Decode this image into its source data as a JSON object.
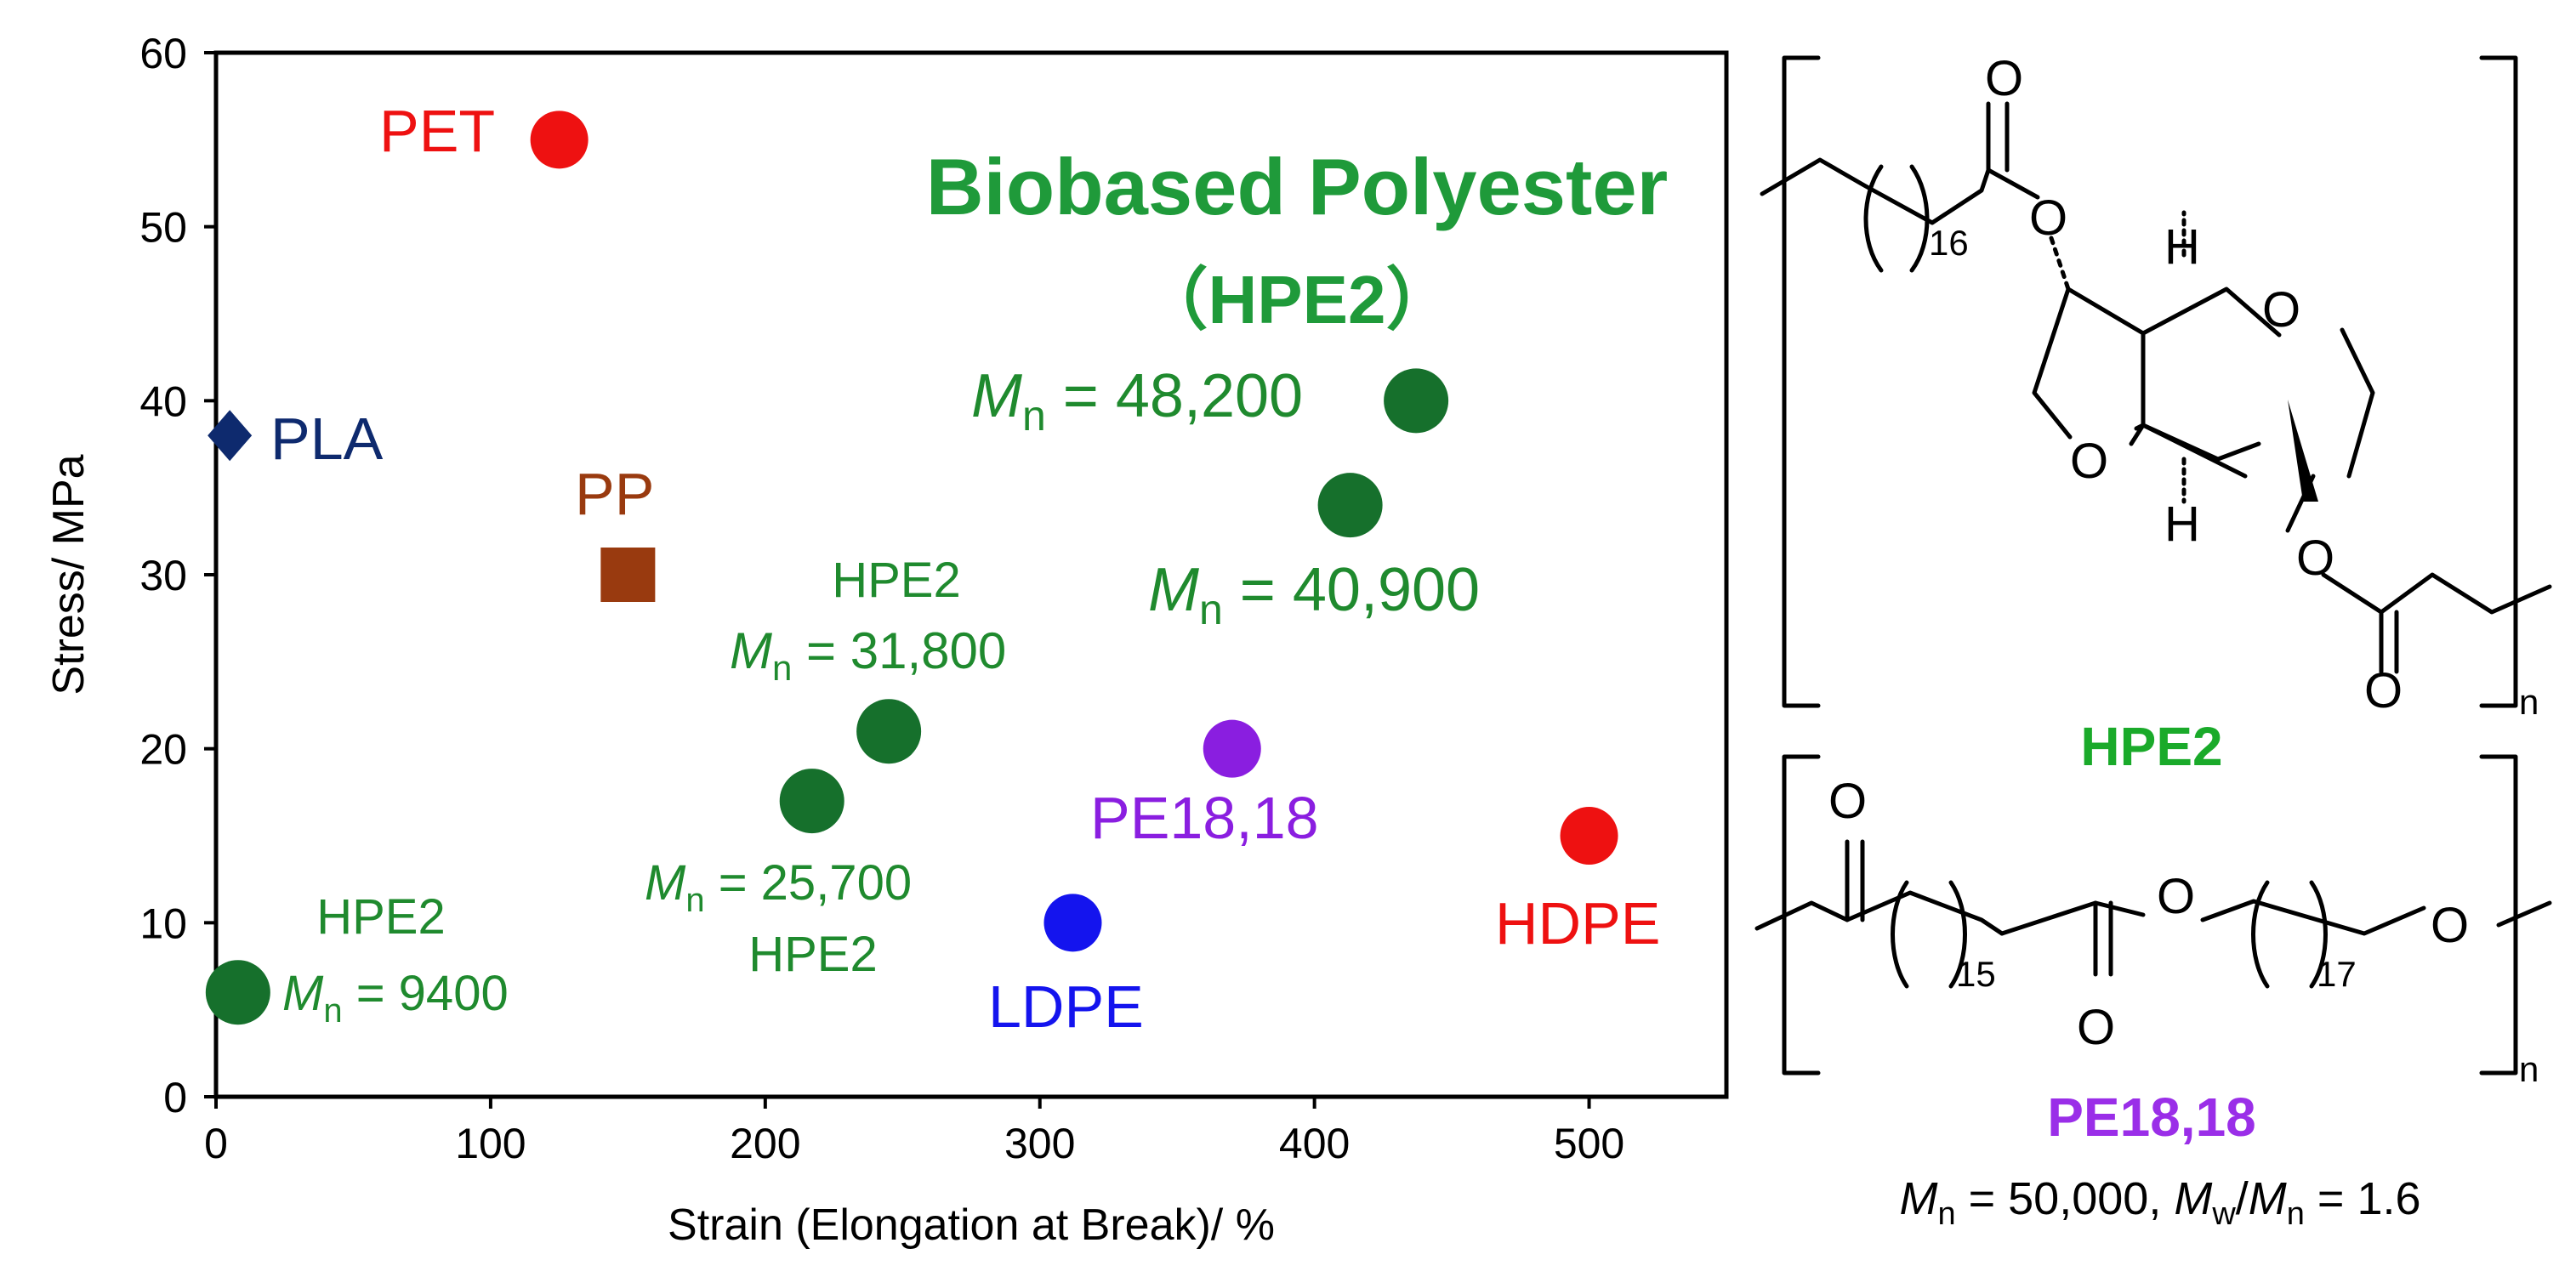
{
  "chart_data": {
    "type": "scatter",
    "title": "Biobased Polyester",
    "subtitle": "（HPE2）",
    "xlabel": "Strain (Elongation at Break)/ %",
    "ylabel": "Stress/ MPa",
    "xlim": [
      0,
      550
    ],
    "ylim": [
      0,
      60
    ],
    "xticks": [
      "0",
      "100",
      "200",
      "300",
      "400",
      "500"
    ],
    "yticks": [
      "0",
      "10",
      "20",
      "30",
      "40",
      "50",
      "60"
    ],
    "grid": false,
    "legend": "none",
    "points": [
      {
        "id": "pet",
        "label": "PET",
        "x": 125,
        "y": 55,
        "marker": "circle",
        "color": "#ee1111"
      },
      {
        "id": "pla",
        "label": "PLA",
        "x": 5,
        "y": 38,
        "marker": "diamond",
        "color": "#0e2a6e"
      },
      {
        "id": "pp",
        "label": "PP",
        "x": 150,
        "y": 30,
        "marker": "square",
        "color": "#993a0f"
      },
      {
        "id": "hpe2-48200",
        "label": "",
        "x": 437,
        "y": 40,
        "marker": "circle",
        "color": "#16702c"
      },
      {
        "id": "hpe2-40900",
        "label": "",
        "x": 413,
        "y": 34,
        "marker": "circle",
        "color": "#16702c"
      },
      {
        "id": "hpe2-31800",
        "label": "",
        "x": 245,
        "y": 21,
        "marker": "circle",
        "color": "#16702c"
      },
      {
        "id": "hpe2-25700",
        "label": "",
        "x": 217,
        "y": 17,
        "marker": "circle",
        "color": "#16702c"
      },
      {
        "id": "hpe2-9400",
        "label": "",
        "x": 8,
        "y": 6,
        "marker": "circle",
        "color": "#16702c"
      },
      {
        "id": "pe1818",
        "label": "PE18,18",
        "x": 370,
        "y": 20,
        "marker": "circle",
        "color": "#8a1ee0"
      },
      {
        "id": "ldpe",
        "label": "LDPE",
        "x": 312,
        "y": 10,
        "marker": "circle",
        "color": "#1414ee"
      },
      {
        "id": "hdpe",
        "label": "HDPE",
        "x": 500,
        "y": 15,
        "marker": "circle",
        "color": "#ee1111"
      }
    ],
    "annotations": {
      "mn_sym": "M",
      "mn_sub": "n",
      "hpe2_name": "HPE2",
      "mn_48200": " = 48,200",
      "mn_40900": " = 40,900",
      "mn_31800": " = 31,800",
      "mn_25700": " = 25,700",
      "mn_9400": " =  9400"
    }
  },
  "structures": {
    "hpe2": {
      "name": "HPE2",
      "name_color": "#1aaa2a",
      "atom_o": "O",
      "atom_h": "H",
      "repeat_16": "16",
      "bracket_n": "n"
    },
    "pe1818": {
      "name": "PE18,18",
      "name_color": "#9a2ee8",
      "atom_o": "O",
      "repeat_15": "15",
      "repeat_17": "17",
      "bracket_n": "n",
      "mn_sym": "M",
      "mn_sub": "n",
      "mn_value": " = 50,000, ",
      "mw_sym": "M",
      "mw_sub": "w",
      "slash": "/",
      "mn2_sym": "M",
      "mn2_sub": "n",
      "pdi_value": " = 1.6"
    }
  },
  "colors": {
    "title_green": "#1f9a3a",
    "label_green": "#1f8a2e",
    "red": "#ee1111",
    "navy": "#0e2a6e",
    "brown": "#993a0f",
    "purple": "#8a1ee0",
    "blue": "#1414ee"
  }
}
